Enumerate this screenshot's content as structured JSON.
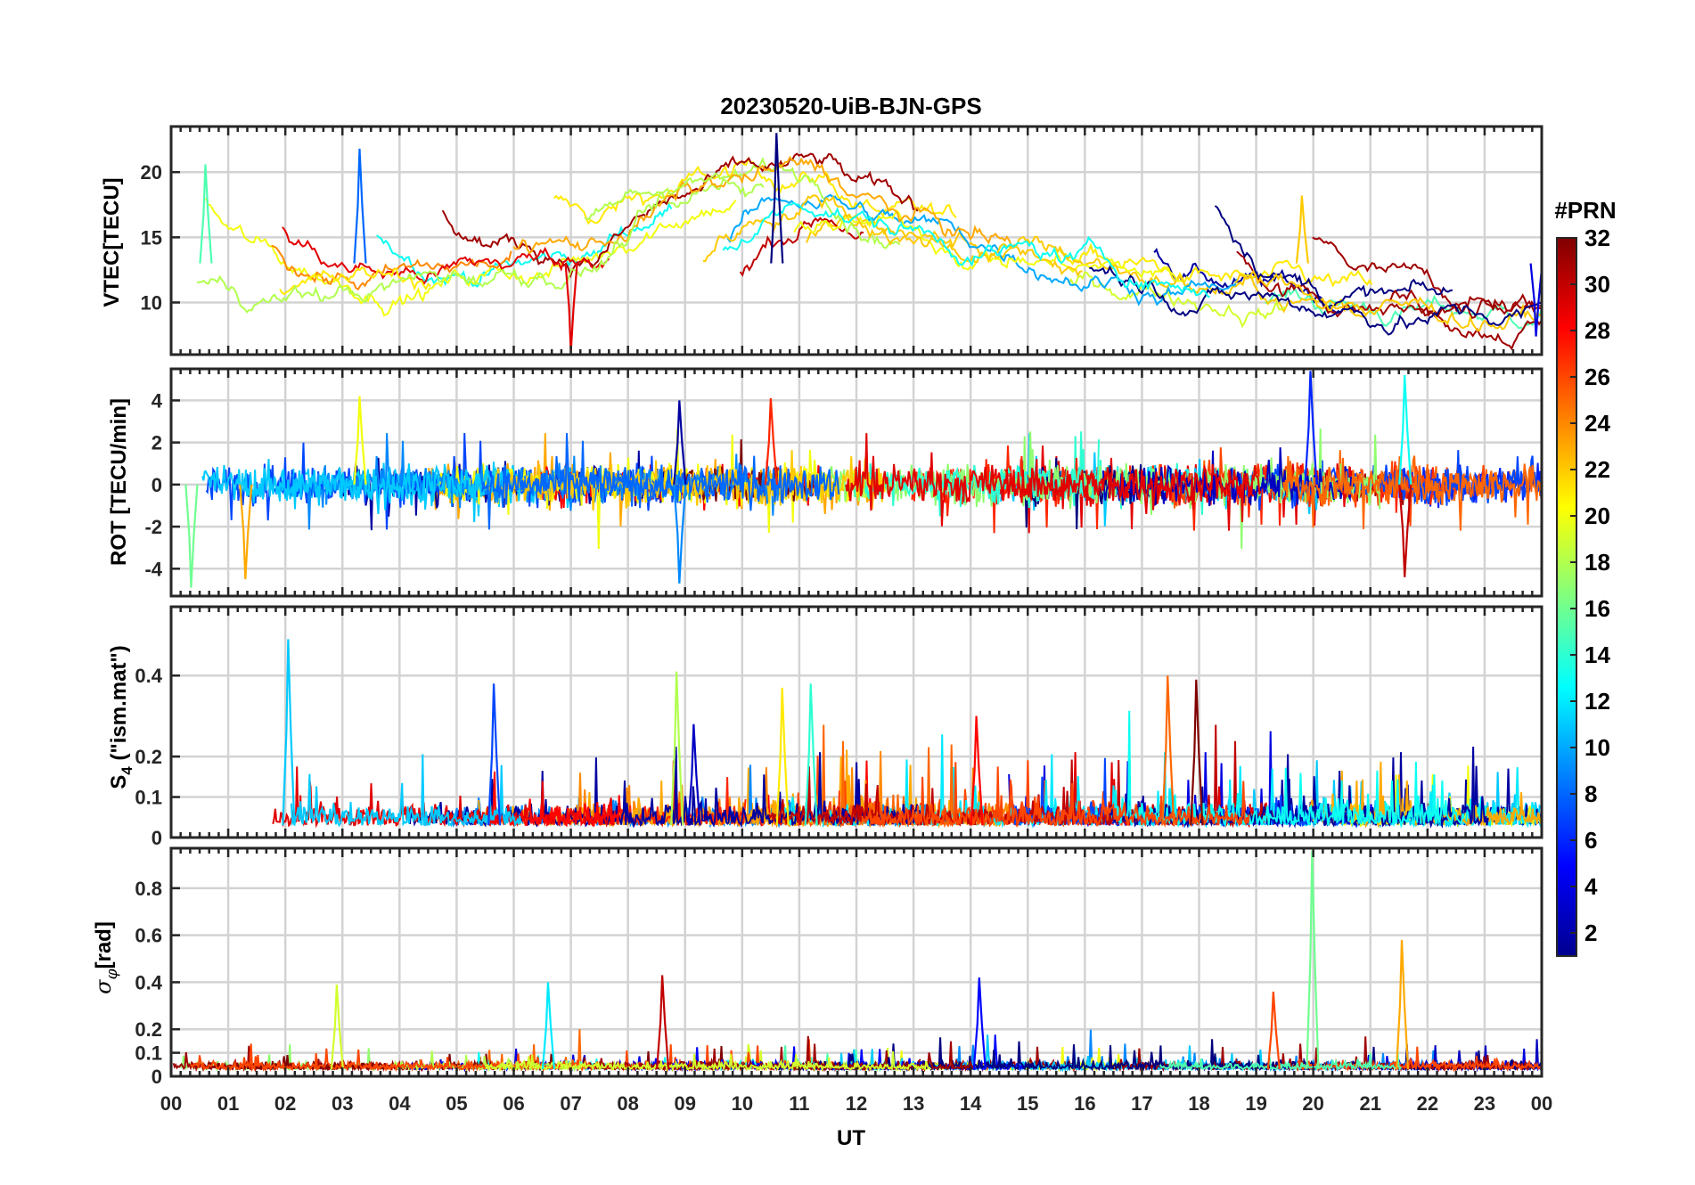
{
  "chart_data": {
    "type": "line",
    "title": "20230520-UiB-BJN-GPS",
    "xlabel": "UT",
    "x_ticks": [
      "00",
      "01",
      "02",
      "03",
      "04",
      "05",
      "06",
      "07",
      "08",
      "09",
      "10",
      "11",
      "12",
      "13",
      "14",
      "15",
      "16",
      "17",
      "18",
      "19",
      "20",
      "21",
      "22",
      "23",
      "00"
    ],
    "xlim": [
      0,
      24
    ],
    "colorbar": {
      "title": "#PRN",
      "range": [
        1,
        32
      ],
      "ticks": [
        "2",
        "4",
        "6",
        "8",
        "10",
        "12",
        "14",
        "16",
        "18",
        "20",
        "22",
        "24",
        "26",
        "28",
        "30",
        "32"
      ],
      "colormap": "jet"
    },
    "panels": [
      {
        "name": "vtec",
        "ylabel": "VTEC[TECU]",
        "ylim": [
          6,
          23.5
        ],
        "yticks": [
          "10",
          "15",
          "20"
        ],
        "ytick_values": [
          10,
          15,
          20
        ],
        "series_summary": "one trace per GPS PRN, values mostly 8–22 TECU",
        "peaks": [
          {
            "x": 10.6,
            "y": 23
          },
          {
            "x": 3.3,
            "y": 21.8
          },
          {
            "x": 0.6,
            "y": 20.6
          },
          {
            "x": 19.8,
            "y": 18.2
          }
        ],
        "troughs": [
          {
            "x": 7.0,
            "y": 6.2
          },
          {
            "x": 23.9,
            "y": 7.4
          }
        ]
      },
      {
        "name": "rot",
        "ylabel": "ROT [TECU/min]",
        "ylim": [
          -5.3,
          5.5
        ],
        "yticks": [
          "-4",
          "-2",
          "0",
          "2",
          "4"
        ],
        "ytick_values": [
          -4,
          -2,
          0,
          2,
          4
        ],
        "series_summary": "fluctuations around 0, mostly within ±2 TECU/min",
        "peaks": [
          {
            "x": 19.95,
            "y": 5.4
          },
          {
            "x": 21.6,
            "y": 5.2
          },
          {
            "x": 3.3,
            "y": 4.2
          },
          {
            "x": 10.5,
            "y": 4.1
          },
          {
            "x": 8.9,
            "y": 4.0
          }
        ],
        "troughs": [
          {
            "x": 8.9,
            "y": -4.7
          },
          {
            "x": 0.35,
            "y": -4.9
          },
          {
            "x": 1.3,
            "y": -4.5
          },
          {
            "x": 21.6,
            "y": -4.4
          }
        ]
      },
      {
        "name": "s4",
        "ylabel": "S4 (\"ism.mat\")",
        "ylim": [
          0,
          0.57
        ],
        "yticks": [
          "0",
          "0.1",
          "0.2",
          "0.4"
        ],
        "ytick_values": [
          0,
          0.1,
          0.2,
          0.4
        ],
        "series_summary": "amplitude scintillation index, baseline 0.02–0.08",
        "peaks": [
          {
            "x": 2.05,
            "y": 0.49
          },
          {
            "x": 8.85,
            "y": 0.41
          },
          {
            "x": 17.45,
            "y": 0.4
          },
          {
            "x": 17.95,
            "y": 0.39
          },
          {
            "x": 5.65,
            "y": 0.38
          },
          {
            "x": 11.2,
            "y": 0.38
          },
          {
            "x": 10.7,
            "y": 0.37
          },
          {
            "x": 14.1,
            "y": 0.3
          },
          {
            "x": 9.15,
            "y": 0.28
          }
        ]
      },
      {
        "name": "sigma_phi",
        "ylabel": "σφ[rad]",
        "ylim": [
          0,
          0.97
        ],
        "yticks": [
          "0",
          "0.1",
          "0.2",
          "0.4",
          "0.6",
          "0.8"
        ],
        "ytick_values": [
          0,
          0.1,
          0.2,
          0.4,
          0.6,
          0.8
        ],
        "series_summary": "phase scintillation index, baseline 0.02–0.08",
        "peaks": [
          {
            "x": 19.98,
            "y": 0.96
          },
          {
            "x": 21.55,
            "y": 0.58
          },
          {
            "x": 8.6,
            "y": 0.43
          },
          {
            "x": 14.15,
            "y": 0.42
          },
          {
            "x": 6.6,
            "y": 0.4
          },
          {
            "x": 2.9,
            "y": 0.39
          },
          {
            "x": 19.3,
            "y": 0.36
          }
        ]
      }
    ]
  }
}
